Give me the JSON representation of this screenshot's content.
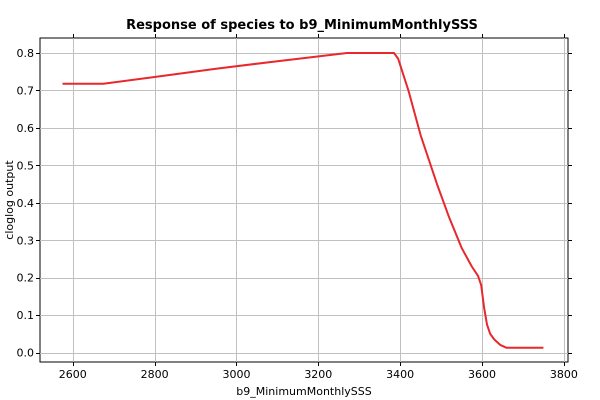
{
  "chart_data": {
    "type": "line",
    "title": "Response of species to b9_MinimumMonthlySSS",
    "xlabel": "b9_MinimumMonthlySSS",
    "ylabel": "cloglog output",
    "xlim": [
      2520,
      3810
    ],
    "ylim": [
      -0.025,
      0.84
    ],
    "xticks": [
      2600,
      2800,
      3000,
      3200,
      3400,
      3600,
      3800
    ],
    "yticks": [
      0.0,
      0.1,
      0.2,
      0.3,
      0.4,
      0.5,
      0.6,
      0.7,
      0.8
    ],
    "ytick_labels": [
      "0.0",
      "0.1",
      "0.2",
      "0.3",
      "0.4",
      "0.5",
      "0.6",
      "0.7",
      "0.8"
    ],
    "grid": true,
    "series_color": "#e8282d",
    "x": [
      2575,
      2675,
      2800,
      2950,
      3100,
      3270,
      3385,
      3395,
      3420,
      3450,
      3490,
      3520,
      3550,
      3575,
      3590,
      3598,
      3605,
      3612,
      3620,
      3630,
      3645,
      3660,
      3750
    ],
    "y": [
      0.718,
      0.718,
      0.736,
      0.758,
      0.778,
      0.8,
      0.8,
      0.785,
      0.7,
      0.58,
      0.45,
      0.36,
      0.28,
      0.23,
      0.205,
      0.18,
      0.12,
      0.075,
      0.05,
      0.035,
      0.02,
      0.013,
      0.013
    ]
  }
}
